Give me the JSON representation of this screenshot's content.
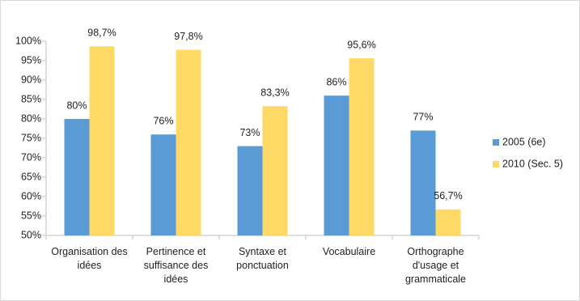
{
  "chart_data": {
    "type": "bar",
    "categories": [
      "Organisation des idées",
      "Pertinence et suffisance des idées",
      "Syntaxe et ponctuation",
      "Vocabulaire",
      "Orthographe d'usage et grammaticale"
    ],
    "series": [
      {
        "name": "2005 (6e)",
        "color": "#5b9bd5",
        "values": [
          80,
          76,
          73,
          86,
          77
        ],
        "value_labels": [
          "80%",
          "76%",
          "73%",
          "86%",
          "77%"
        ]
      },
      {
        "name": "2010 (Sec. 5)",
        "color": "#ffd966",
        "values": [
          98.7,
          97.8,
          83.3,
          95.6,
          56.7
        ],
        "value_labels": [
          "98,7%",
          "97,8%",
          "83,3%",
          "95,6%",
          "56,7%"
        ]
      }
    ],
    "ylim": [
      50,
      100
    ],
    "yticks": [
      {
        "value": 50,
        "label": "50%"
      },
      {
        "value": 55,
        "label": "55%"
      },
      {
        "value": 60,
        "label": "60%"
      },
      {
        "value": 65,
        "label": "65%"
      },
      {
        "value": 70,
        "label": "70%"
      },
      {
        "value": 75,
        "label": "75%"
      },
      {
        "value": 80,
        "label": "80%"
      },
      {
        "value": 85,
        "label": "85%"
      },
      {
        "value": 90,
        "label": "90%"
      },
      {
        "value": 95,
        "label": "95%"
      },
      {
        "value": 100,
        "label": "100%"
      }
    ],
    "grid": false,
    "legend": "right"
  }
}
